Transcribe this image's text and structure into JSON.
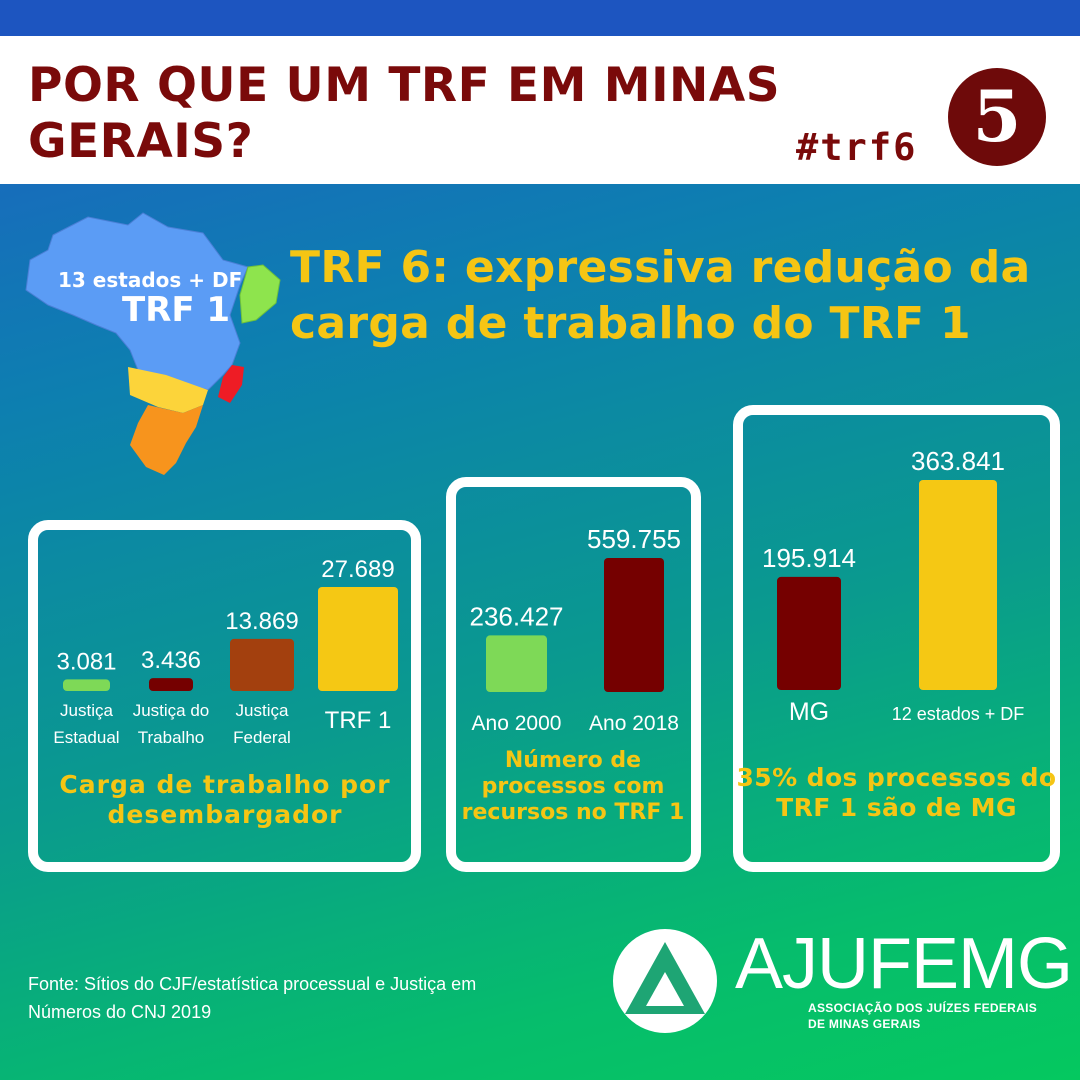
{
  "header": {
    "title": "POR QUE UM TRF EM MINAS GERAIS?",
    "hashtag": "#trf6",
    "number": "5"
  },
  "map": {
    "label_small": "13 estados + DF",
    "label_big": "TRF 1",
    "colors": {
      "trf1": "#5b9cf5",
      "trf5": "#8ee44d",
      "trf2": "#ee1c25",
      "trf3": "#fcd43a",
      "trf4": "#f7941d"
    }
  },
  "subtitle": "TRF 6: expressiva redução da carga de trabalho do TRF 1",
  "chart_data": [
    {
      "type": "bar",
      "categories": [
        "Justiça Estadual",
        "Justiça do Trabalho",
        "Justiça Federal",
        "TRF 1"
      ],
      "category_lines": [
        [
          "Justiça",
          "Estadual"
        ],
        [
          "Justiça do",
          "Trabalho"
        ],
        [
          "Justiça",
          "Federal"
        ],
        [
          "TRF 1"
        ]
      ],
      "values": [
        3081,
        3436,
        13869,
        27689
      ],
      "value_labels": [
        "3.081",
        "3.436",
        "13.869",
        "27.689"
      ],
      "colors": [
        "#7ed957",
        "#750000",
        "#a3400e",
        "#f5c814"
      ],
      "title": "Carga de trabalho por desembargador"
    },
    {
      "type": "bar",
      "categories": [
        "Ano 2000",
        "Ano 2018"
      ],
      "category_lines": [
        [
          "Ano 2000"
        ],
        [
          "Ano 2018"
        ]
      ],
      "values": [
        236427,
        559755
      ],
      "value_labels": [
        "236.427",
        "559.755"
      ],
      "colors": [
        "#7ed957",
        "#750000"
      ],
      "title": "Número de processos com recursos no TRF 1"
    },
    {
      "type": "bar",
      "categories": [
        "MG",
        "12 estados + DF"
      ],
      "category_lines": [
        [
          "MG"
        ],
        [
          "12 estados + DF"
        ]
      ],
      "values": [
        195914,
        363841
      ],
      "value_labels": [
        "195.914",
        "363.841"
      ],
      "colors": [
        "#750000",
        "#f5c814"
      ],
      "title": "35% dos processos do TRF 1 são de MG"
    }
  ],
  "footer": {
    "source": "Fonte: Sítios do CJF/estatística processual e Justiça em Números do CNJ 2019",
    "logo_name": "AJUFEMG",
    "logo_subtitle": "ASSOCIAÇÃO DOS JUÍZES FEDERAIS DE MINAS GERAIS"
  }
}
